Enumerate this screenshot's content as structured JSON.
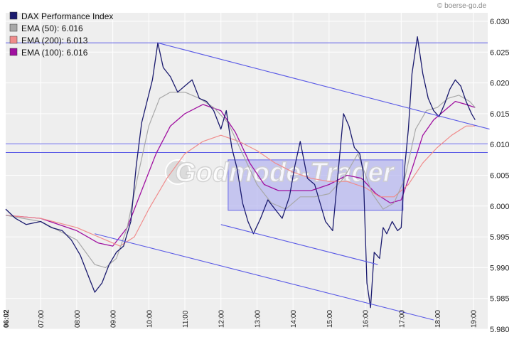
{
  "source_label": "© boerse-go.de",
  "watermark": "Godmode-Trader",
  "chart_data": {
    "type": "line",
    "title": "",
    "xlabel": "",
    "ylabel": "",
    "ylim": [
      5.98,
      6.03
    ],
    "xlim_hours": [
      6.03,
      19.4
    ],
    "grid": true,
    "legend_position": "top-left",
    "y_ticks": [
      "6.030",
      "6.025",
      "6.020",
      "6.015",
      "6.010",
      "6.005",
      "6.000",
      "5.995",
      "5.990",
      "5.985",
      "5.980"
    ],
    "y_tick_values": [
      6.03,
      6.025,
      6.02,
      6.015,
      6.01,
      6.005,
      6.0,
      5.995,
      5.99,
      5.985,
      5.98
    ],
    "x_ticks": [
      "06:02",
      "07:00",
      "08:00",
      "09:00",
      "10:00",
      "11:00",
      "12:00",
      "13:00",
      "14:00",
      "15:00",
      "16:00",
      "17:00",
      "18:00",
      "19:00"
    ],
    "x_tick_hours": [
      6.033,
      7,
      8,
      9,
      10,
      11,
      12,
      13,
      14,
      15,
      16,
      17,
      18,
      19
    ],
    "colors": {
      "dax": "#1a1a6e",
      "ema50": "#a8a8a8",
      "ema200": "#f08c8c",
      "ema100": "#a010a0",
      "trendline": "#5a5ae6",
      "box_fill": "#b4b4f0",
      "box_stroke": "#6a6ae6",
      "plot_bg": "#eeeeee",
      "grid": "#ffffff"
    },
    "legend": [
      {
        "label": "DAX Performance Index",
        "color": "#1a1a6e"
      },
      {
        "label": "EMA (50): 6.016",
        "color": "#a8a8a8"
      },
      {
        "label": "EMA (200): 6.013",
        "color": "#f08c8c"
      },
      {
        "label": "EMA (100): 6.016",
        "color": "#a010a0"
      }
    ],
    "series": [
      {
        "name": "DAX Performance Index",
        "x": [
          6.03,
          6.3,
          6.6,
          7.0,
          7.3,
          7.6,
          7.85,
          8.1,
          8.3,
          8.5,
          8.7,
          8.9,
          9.1,
          9.3,
          9.5,
          9.65,
          9.8,
          9.95,
          10.1,
          10.25,
          10.4,
          10.6,
          10.8,
          11.0,
          11.2,
          11.4,
          11.6,
          11.8,
          12.0,
          12.15,
          12.3,
          12.45,
          12.6,
          12.75,
          12.9,
          13.1,
          13.3,
          13.5,
          13.7,
          13.9,
          14.05,
          14.2,
          14.4,
          14.6,
          14.75,
          14.9,
          15.1,
          15.25,
          15.4,
          15.55,
          15.7,
          15.85,
          15.95,
          16.05,
          16.15,
          16.25,
          16.4,
          16.5,
          16.6,
          16.75,
          16.9,
          17.0,
          17.1,
          17.2,
          17.3,
          17.45,
          17.6,
          17.75,
          17.9,
          18.05,
          18.2,
          18.35,
          18.5,
          18.65,
          18.8,
          18.95,
          19.05
        ],
        "values": [
          5.9995,
          5.998,
          5.997,
          5.9975,
          5.9965,
          5.996,
          5.9945,
          5.992,
          5.989,
          5.986,
          5.9875,
          5.9905,
          5.9925,
          5.9935,
          5.9975,
          6.0065,
          6.0135,
          6.017,
          6.0205,
          6.0265,
          6.0225,
          6.021,
          6.0185,
          6.0195,
          6.0205,
          6.0175,
          6.017,
          6.0155,
          6.0125,
          6.0155,
          6.0095,
          6.006,
          6.0005,
          5.9975,
          5.9955,
          5.998,
          6.001,
          5.9995,
          5.998,
          6.0015,
          6.0065,
          6.0105,
          6.0045,
          6.0035,
          6.0005,
          5.9975,
          5.996,
          6.0055,
          6.015,
          6.013,
          6.0095,
          6.0085,
          6.0055,
          5.9875,
          5.9835,
          5.9925,
          5.9915,
          5.9965,
          5.9955,
          5.9975,
          5.996,
          5.9965,
          6.0065,
          6.0125,
          6.0215,
          6.0275,
          6.0215,
          6.0175,
          6.0155,
          6.0145,
          6.0165,
          6.019,
          6.0205,
          6.0195,
          6.017,
          6.015,
          6.014
        ]
      },
      {
        "name": "EMA (50): 6.016",
        "x": [
          6.03,
          7.0,
          8.0,
          8.5,
          8.8,
          9.1,
          9.4,
          9.7,
          10.0,
          10.3,
          10.6,
          11.0,
          11.4,
          11.8,
          12.2,
          12.6,
          13.0,
          13.4,
          13.8,
          14.2,
          14.6,
          15.0,
          15.4,
          15.8,
          16.2,
          16.5,
          16.8,
          17.1,
          17.4,
          17.7,
          18.0,
          18.3,
          18.6,
          18.9,
          19.05
        ],
        "values": [
          5.9985,
          5.9975,
          5.9945,
          5.9905,
          5.99,
          5.9915,
          5.9965,
          6.005,
          6.013,
          6.0175,
          6.0185,
          6.0185,
          6.0175,
          6.016,
          6.0135,
          6.0085,
          6.0035,
          6.0005,
          5.9995,
          6.0015,
          6.0015,
          6.002,
          6.0045,
          6.0085,
          6.002,
          5.9995,
          6.0005,
          6.0045,
          6.0125,
          6.0155,
          6.016,
          6.0175,
          6.018,
          6.017,
          6.016
        ]
      },
      {
        "name": "EMA (200): 6.013",
        "x": [
          6.03,
          7.0,
          8.0,
          8.8,
          9.2,
          9.6,
          10.0,
          10.5,
          11.0,
          11.5,
          12.0,
          12.5,
          13.0,
          13.5,
          14.0,
          14.5,
          15.0,
          15.5,
          16.0,
          16.4,
          16.8,
          17.2,
          17.6,
          18.0,
          18.4,
          18.8,
          19.05
        ],
        "values": [
          5.9985,
          5.998,
          5.9965,
          5.9945,
          5.9935,
          5.995,
          5.9995,
          6.0045,
          6.0085,
          6.0105,
          6.0115,
          6.0105,
          6.009,
          6.007,
          6.0055,
          6.0045,
          6.004,
          6.004,
          6.003,
          6.0015,
          6.0015,
          6.0035,
          6.007,
          6.0095,
          6.0115,
          6.013,
          6.013
        ]
      },
      {
        "name": "EMA (100): 6.016",
        "x": [
          6.03,
          7.0,
          8.0,
          8.6,
          9.0,
          9.4,
          9.8,
          10.2,
          10.6,
          11.0,
          11.5,
          12.0,
          12.4,
          12.8,
          13.2,
          13.6,
          14.0,
          14.5,
          15.0,
          15.5,
          15.9,
          16.3,
          16.7,
          17.0,
          17.3,
          17.6,
          17.9,
          18.2,
          18.5,
          18.8,
          19.05
        ],
        "values": [
          5.9985,
          5.998,
          5.996,
          5.994,
          5.9935,
          5.9965,
          6.0025,
          6.0085,
          6.013,
          6.015,
          6.0165,
          6.0155,
          6.012,
          6.007,
          6.0035,
          6.0025,
          6.0025,
          6.0025,
          6.0035,
          6.005,
          6.0045,
          6.002,
          6.0005,
          6.001,
          6.006,
          6.0115,
          6.014,
          6.0155,
          6.017,
          6.0165,
          6.016
        ]
      }
    ],
    "horizontal_lines": [
      6.0265,
      6.0101,
      6.0087
    ],
    "trendlines": [
      {
        "x1": 10.25,
        "y1": 6.0265,
        "x2": 19.45,
        "y2": 6.0125
      },
      {
        "x1": 8.5,
        "y1": 5.9955,
        "x2": 17.9,
        "y2": 5.9815
      },
      {
        "x1": 12.0,
        "y1": 5.997,
        "x2": 16.35,
        "y2": 5.9905
      }
    ],
    "zones": [
      {
        "x0": 12.2,
        "x1": 17.05,
        "y0": 5.9993,
        "y1": 6.0075
      }
    ]
  }
}
